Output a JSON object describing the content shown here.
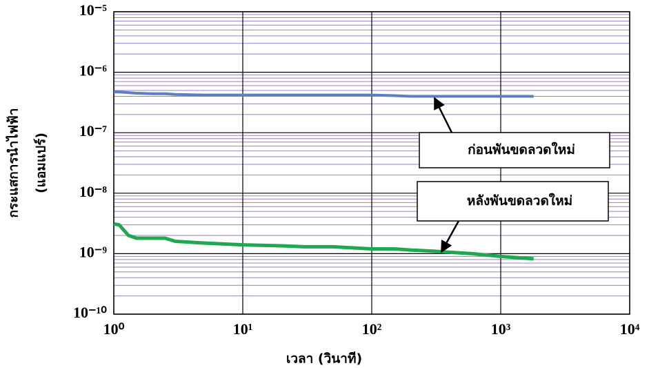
{
  "chart_data": {
    "type": "line",
    "xlabel": "เวลา (วินาที)",
    "ylabel": [
      "กระแสการนำไฟฟ้า",
      "(แอมแปร์)"
    ],
    "xscale": "log",
    "yscale": "log",
    "grid": true,
    "minor_grid": true,
    "xlim": [
      1,
      10000
    ],
    "xticks": [
      {
        "value": 1,
        "label": "10⁰"
      },
      {
        "value": 10,
        "label": "10¹"
      },
      {
        "value": 100,
        "label": "10²"
      },
      {
        "value": 1000,
        "label": "10³"
      },
      {
        "value": 10000,
        "label": "10⁴"
      }
    ],
    "ylim": [
      1e-10,
      1e-05
    ],
    "yticks": [
      {
        "value": 1e-10,
        "label": "10⁻¹⁰"
      },
      {
        "value": 1e-09,
        "label": "10⁻⁹"
      },
      {
        "value": 1e-08,
        "label": "10⁻⁸"
      },
      {
        "value": 1e-07,
        "label": "10⁻⁷"
      },
      {
        "value": 1e-06,
        "label": "10⁻⁶"
      },
      {
        "value": 1e-05,
        "label": "10⁻⁵"
      }
    ],
    "x": [
      1,
      1.1,
      1.3,
      1.5,
      2,
      2.5,
      3,
      5,
      10,
      20,
      30,
      50,
      100,
      150,
      200,
      300,
      600,
      1000,
      1800
    ],
    "series": [
      {
        "name": "ก่อนพันขดลวดใหม่",
        "color": "#5b7fc1",
        "values": [
          4.7e-07,
          4.7e-07,
          4.6e-07,
          4.5e-07,
          4.4e-07,
          4.4e-07,
          4.3e-07,
          4.2e-07,
          4.2e-07,
          4.2e-07,
          4.2e-07,
          4.2e-07,
          4.2e-07,
          4.1e-07,
          4e-07,
          4e-07,
          4e-07,
          4e-07,
          4e-07
        ]
      },
      {
        "name": "หลังพันขดลวดใหม่",
        "color": "#1fa84f",
        "values": [
          3.1e-09,
          3e-09,
          2e-09,
          1.8e-09,
          1.8e-09,
          1.8e-09,
          1.6e-09,
          1.5e-09,
          1.4e-09,
          1.35e-09,
          1.3e-09,
          1.3e-09,
          1.2e-09,
          1.2e-09,
          1.15e-09,
          1.1e-09,
          1e-09,
          9e-10,
          8.2e-10
        ]
      }
    ]
  }
}
